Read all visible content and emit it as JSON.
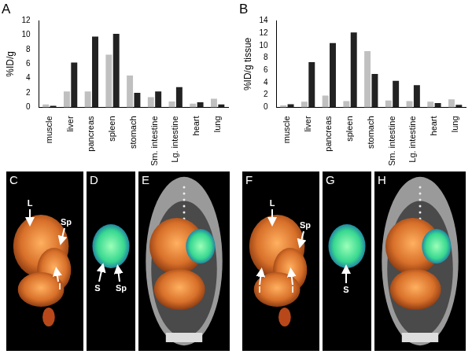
{
  "chart_data": [
    {
      "type": "bar",
      "title": "A",
      "ylabel": "%ID/g",
      "categories": [
        "muscle",
        "liver",
        "pancreas",
        "spleen",
        "stomach",
        "Sm. intestine",
        "Lg. intestine",
        "heart",
        "lung"
      ],
      "series": [
        {
          "color": "#c0c0c0",
          "values": [
            0.4,
            2.2,
            2.2,
            7.3,
            4.4,
            1.4,
            0.8,
            0.5,
            1.2
          ]
        },
        {
          "color": "#222222",
          "values": [
            0.2,
            6.2,
            9.8,
            10.2,
            2.0,
            2.2,
            2.8,
            0.7,
            0.4
          ]
        }
      ],
      "ylim": [
        0,
        12
      ],
      "yticks": [
        0,
        2,
        4,
        6,
        8,
        10,
        12
      ],
      "grid": false
    },
    {
      "type": "bar",
      "title": "B",
      "ylabel": "%ID/g tissue",
      "categories": [
        "muscle",
        "liver",
        "pancreas",
        "spleen",
        "stomach",
        "Sm. intestine",
        "Lg. intestine",
        "heart",
        "lung"
      ],
      "series": [
        {
          "color": "#c0c0c0",
          "values": [
            0.3,
            0.9,
            1.9,
            1.0,
            9.1,
            1.1,
            1.0,
            0.9,
            1.3
          ]
        },
        {
          "color": "#222222",
          "values": [
            0.5,
            7.3,
            10.4,
            12.1,
            5.4,
            4.3,
            3.6,
            0.7,
            0.4
          ]
        }
      ],
      "ylim": [
        0,
        14
      ],
      "yticks": [
        0,
        2,
        4,
        6,
        8,
        10,
        12,
        14
      ],
      "grid": false
    }
  ],
  "images": [
    {
      "label": "C",
      "annotations": [
        "L",
        "Sp",
        "I"
      ]
    },
    {
      "label": "D",
      "annotations": [
        "S",
        "Sp"
      ]
    },
    {
      "label": "E",
      "annotations": []
    },
    {
      "label": "F",
      "annotations": [
        "L",
        "Sp",
        "I",
        "I"
      ]
    },
    {
      "label": "G",
      "annotations": [
        "S"
      ]
    },
    {
      "label": "H",
      "annotations": []
    }
  ]
}
